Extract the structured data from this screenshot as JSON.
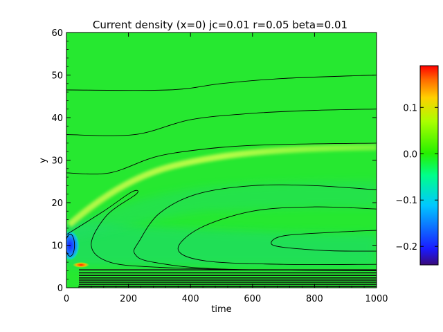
{
  "chart_data": {
    "type": "heatmap",
    "title": "Current density (x=0) jc=0.01 r=0.05 beta=0.01",
    "xlabel": "time",
    "ylabel": "y",
    "xlim": [
      0,
      1000
    ],
    "ylim": [
      0,
      60
    ],
    "xticks": [
      0,
      200,
      400,
      600,
      800,
      1000
    ],
    "yticks": [
      0,
      10,
      20,
      30,
      40,
      50,
      60
    ],
    "colorbar": {
      "min": -0.24,
      "max": 0.19,
      "ticks": [
        0.1,
        0.0,
        -0.1,
        -0.2
      ],
      "tick_labels": [
        "0.1",
        "0.0",
        "−0.1",
        "−0.2"
      ],
      "colormap": "rainbow"
    },
    "field_background": 0.0,
    "features": [
      {
        "name": "negative core",
        "time": 10,
        "y": 10,
        "value": -0.23
      },
      {
        "name": "positive spot",
        "time": 50,
        "y": 5,
        "value": 0.18
      },
      {
        "name": "positive ridge",
        "time": [
          30,
          1000
        ],
        "y": [
          12,
          32.5
        ],
        "value": 0.04
      }
    ],
    "contour_lines": [
      {
        "points": [
          [
            0,
            46.5
          ],
          [
            330,
            46.5
          ],
          [
            500,
            48
          ],
          [
            700,
            49.2
          ],
          [
            1000,
            50
          ]
        ]
      },
      {
        "points": [
          [
            0,
            36
          ],
          [
            220,
            36
          ],
          [
            400,
            39.5
          ],
          [
            600,
            41
          ],
          [
            800,
            41.7
          ],
          [
            1000,
            42
          ]
        ]
      },
      {
        "points": [
          [
            0,
            27
          ],
          [
            140,
            27
          ],
          [
            300,
            31
          ],
          [
            500,
            33
          ],
          [
            700,
            33.7
          ],
          [
            1000,
            34
          ]
        ]
      },
      {
        "points": [
          [
            1000,
            23
          ],
          [
            800,
            24
          ],
          [
            600,
            24
          ],
          [
            420,
            22
          ],
          [
            300,
            17.5
          ],
          [
            235,
            11
          ],
          [
            220,
            8
          ],
          [
            280,
            6
          ],
          [
            500,
            4.4
          ],
          [
            1000,
            4
          ]
        ]
      },
      {
        "points": [
          [
            1000,
            18.5
          ],
          [
            800,
            19
          ],
          [
            600,
            18
          ],
          [
            430,
            14
          ],
          [
            360,
            9
          ],
          [
            450,
            6.3
          ],
          [
            700,
            5.5
          ],
          [
            1000,
            5.5
          ]
        ]
      },
      {
        "points": [
          [
            1000,
            13.5
          ],
          [
            850,
            13
          ],
          [
            700,
            12.2
          ],
          [
            660,
            10.5
          ],
          [
            700,
            9.5
          ],
          [
            850,
            8.7
          ],
          [
            1000,
            8.6
          ]
        ]
      },
      {
        "points": [
          [
            0,
            12.5
          ],
          [
            120,
            18
          ],
          [
            210,
            22.5
          ],
          [
            225,
            22
          ],
          [
            130,
            17
          ],
          [
            80,
            10
          ],
          [
            140,
            6
          ],
          [
            300,
            4.8
          ],
          [
            600,
            4.2
          ],
          [
            1000,
            4.1
          ]
        ]
      }
    ],
    "closed_contours": [
      {
        "center": [
          12,
          10
        ],
        "radius_x": 14,
        "radius_y": 2.6
      }
    ],
    "stripe_rows_y": [
      0.3,
      0.8,
      1.3,
      1.8,
      2.3,
      2.9,
      3.5,
      4.2
    ]
  }
}
